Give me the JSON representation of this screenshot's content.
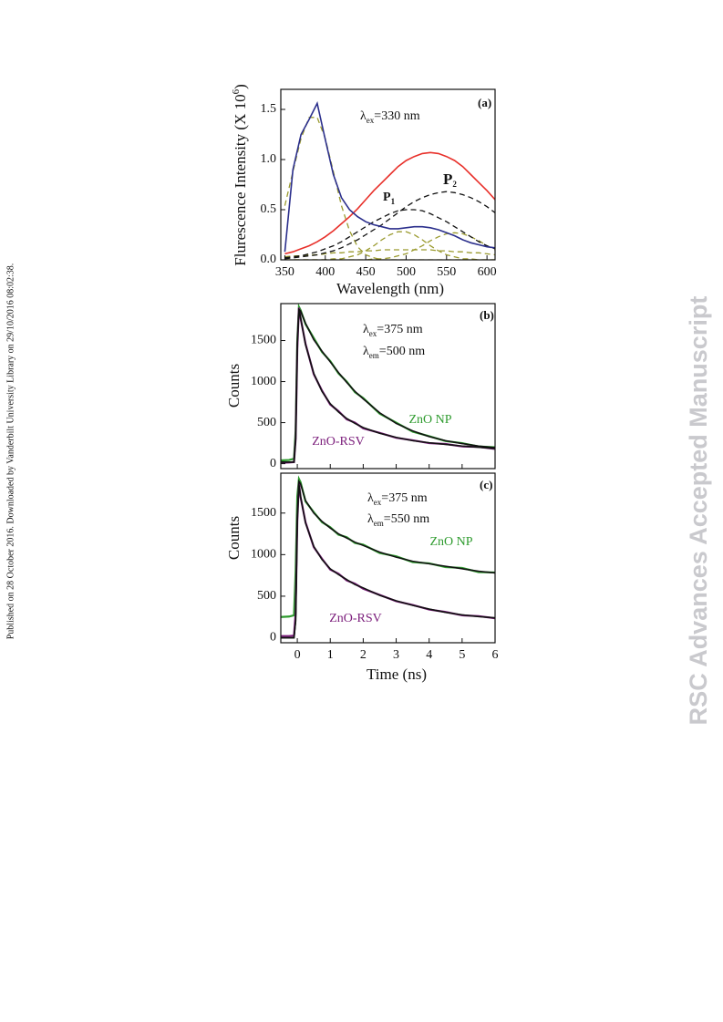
{
  "margin_note": "Published on 28 October 2016. Downloaded by Vanderbilt University Library on 29/10/2016 08:02:38.",
  "watermark": "RSC Advances Accepted Manuscript",
  "chart_data": [
    {
      "type": "line",
      "xlabel": "Wavelength (nm)",
      "ylabel": {
        "text": "Flurescence Intensity (X 10",
        "sup": "6",
        "after": ")"
      },
      "annotations": [
        {
          "text": "(a)"
        },
        {
          "text": "λ",
          "sub": "ex",
          "after": "=330 nm"
        },
        {
          "text": "P",
          "sub": "1"
        },
        {
          "text": "P",
          "sub": "2"
        }
      ],
      "xlim": [
        345,
        610
      ],
      "ylim": [
        0,
        1.7
      ],
      "xticks": [
        350,
        400,
        450,
        500,
        550,
        600
      ],
      "yticks": [
        {
          "value": 0,
          "label": "0.0"
        },
        0.5,
        {
          "value": 1,
          "label": "1.0"
        },
        1.5
      ],
      "xtick_labels": true,
      "x": [
        350,
        360,
        370,
        380,
        390,
        400,
        410,
        420,
        430,
        440,
        450,
        460,
        470,
        480,
        490,
        500,
        510,
        520,
        530,
        540,
        550,
        560,
        570,
        580,
        590,
        600,
        610
      ],
      "series": [
        {
          "color": "#9a9a2e",
          "dash": true,
          "values": [
            0.54,
            0.88,
            1.21,
            1.42,
            1.42,
            1.21,
            0.88,
            0.54,
            0.29,
            0.13,
            0.05,
            0.02,
            0,
            0,
            0,
            0,
            0,
            0,
            0,
            0,
            0,
            0,
            0,
            0,
            0,
            0,
            0
          ]
        },
        {
          "color": "#9a9a2e",
          "dash": true,
          "values": [
            0,
            0,
            0,
            0,
            0,
            0,
            0.01,
            0.01,
            0.03,
            0.05,
            0.09,
            0.14,
            0.2,
            0.25,
            0.28,
            0.28,
            0.25,
            0.2,
            0.14,
            0.09,
            0.05,
            0.03,
            0.01,
            0.01,
            0,
            0,
            0
          ]
        },
        {
          "color": "#9a9a2e",
          "dash": true,
          "values": [
            0,
            0,
            0,
            0,
            0,
            0,
            0,
            0,
            0,
            0,
            0,
            0.01,
            0.01,
            0.02,
            0.04,
            0.06,
            0.1,
            0.14,
            0.19,
            0.23,
            0.26,
            0.27,
            0.26,
            0.23,
            0.19,
            0.14,
            0.1
          ]
        },
        {
          "color": "#9a9a2e",
          "dash": true,
          "values": [
            0.03,
            0.04,
            0.04,
            0.05,
            0.05,
            0.06,
            0.07,
            0.07,
            0.08,
            0.08,
            0.09,
            0.09,
            0.1,
            0.1,
            0.1,
            0.1,
            0.1,
            0.1,
            0.1,
            0.09,
            0.09,
            0.08,
            0.08,
            0.07,
            0.07,
            0.06,
            0.05
          ]
        },
        {
          "color": "#111111",
          "dash": true,
          "values": [
            0.02,
            0.03,
            0.04,
            0.06,
            0.08,
            0.11,
            0.14,
            0.18,
            0.23,
            0.28,
            0.33,
            0.38,
            0.42,
            0.46,
            0.49,
            0.5,
            0.5,
            0.49,
            0.46,
            0.42,
            0.38,
            0.33,
            0.28,
            0.23,
            0.18,
            0.14,
            0.11
          ]
        },
        {
          "color": "#111111",
          "dash": true,
          "values": [
            0.01,
            0.02,
            0.03,
            0.04,
            0.05,
            0.07,
            0.09,
            0.12,
            0.16,
            0.2,
            0.25,
            0.3,
            0.35,
            0.41,
            0.47,
            0.53,
            0.58,
            0.62,
            0.65,
            0.67,
            0.68,
            0.67,
            0.65,
            0.62,
            0.58,
            0.53,
            0.47
          ]
        },
        {
          "color": "#e8302a",
          "dash": false,
          "values": [
            0.06,
            0.08,
            0.11,
            0.14,
            0.18,
            0.23,
            0.29,
            0.36,
            0.43,
            0.51,
            0.6,
            0.69,
            0.77,
            0.85,
            0.93,
            0.99,
            1.03,
            1.06,
            1.07,
            1.06,
            1.03,
            0.99,
            0.93,
            0.85,
            0.77,
            0.69,
            0.6
          ]
        },
        {
          "color": "#2b2f8c",
          "dash": false,
          "values": [
            0.08,
            0.9,
            1.25,
            1.4,
            1.56,
            1.2,
            0.85,
            0.62,
            0.5,
            0.43,
            0.38,
            0.35,
            0.33,
            0.31,
            0.31,
            0.32,
            0.33,
            0.33,
            0.32,
            0.3,
            0.27,
            0.24,
            0.2,
            0.17,
            0.15,
            0.13,
            0.12
          ]
        }
      ]
    },
    {
      "type": "line",
      "ylabel": {
        "text": "Counts"
      },
      "annotations": [
        {
          "text": "(b)"
        },
        {
          "text": "λ",
          "sub": "ex",
          "after": "=375 nm"
        },
        {
          "text": "λ",
          "sub": "em",
          "after": "=500 nm"
        }
      ],
      "xlim": [
        -0.5,
        6
      ],
      "ylim": [
        -60,
        1950
      ],
      "xticks": [
        0,
        1,
        2,
        3,
        4,
        5,
        6
      ],
      "yticks": [
        0,
        500,
        1000,
        1500
      ],
      "xtick_labels": false,
      "x": [
        -0.5,
        -0.25,
        -0.1,
        -0.05,
        0,
        0.05,
        0.1,
        0.25,
        0.5,
        0.75,
        1,
        1.25,
        1.5,
        1.75,
        2,
        2.5,
        3,
        3.5,
        4,
        4.5,
        5,
        5.5,
        6
      ],
      "series": [
        {
          "name": "ZnO NP",
          "color": "#2e9b2e",
          "dash": false,
          "values": [
            40,
            45,
            60,
            400,
            1500,
            1910,
            1870,
            1700,
            1530,
            1360,
            1250,
            1100,
            1000,
            870,
            800,
            610,
            500,
            390,
            335,
            275,
            250,
            210,
            200
          ]
        },
        {
          "name": "ZnO-RSV",
          "color": "#7b1d7b",
          "dash": false,
          "values": [
            10,
            15,
            20,
            300,
            1400,
            1900,
            1770,
            1460,
            1090,
            890,
            720,
            640,
            540,
            500,
            430,
            375,
            315,
            285,
            250,
            240,
            210,
            205,
            180
          ]
        },
        {
          "color": "#111111",
          "dash": false,
          "values": [
            20,
            20,
            20,
            300,
            1450,
            1880,
            1860,
            1710,
            1510,
            1370,
            1240,
            1110,
            990,
            880,
            790,
            620,
            490,
            400,
            330,
            280,
            245,
            215,
            195
          ]
        },
        {
          "color": "#111111",
          "dash": false,
          "values": [
            20,
            20,
            20,
            300,
            1450,
            1880,
            1780,
            1450,
            1100,
            880,
            730,
            630,
            550,
            490,
            440,
            370,
            320,
            280,
            255,
            235,
            215,
            200,
            185
          ]
        }
      ]
    },
    {
      "type": "line",
      "xlabel": "Time (ns)",
      "ylabel": {
        "text": "Counts"
      },
      "annotations": [
        {
          "text": "(c)"
        },
        {
          "text": "λ",
          "sub": "ex",
          "after": "=375 nm"
        },
        {
          "text": "λ",
          "sub": "em",
          "after": "=550 nm"
        }
      ],
      "xlim": [
        -0.5,
        6
      ],
      "ylim": [
        -60,
        1980
      ],
      "xticks": [
        0,
        1,
        2,
        3,
        4,
        5,
        6
      ],
      "yticks": [
        0,
        500,
        1000,
        1500
      ],
      "xtick_labels": true,
      "x": [
        -0.5,
        -0.25,
        -0.1,
        -0.05,
        0,
        0.05,
        0.1,
        0.25,
        0.5,
        0.75,
        1,
        1.25,
        1.5,
        1.75,
        2,
        2.5,
        3,
        3.5,
        4,
        4.5,
        5,
        5.5,
        6
      ],
      "series": [
        {
          "name": "ZnO NP",
          "color": "#2e9b2e",
          "dash": false,
          "values": [
            250,
            255,
            270,
            800,
            1700,
            1910,
            1870,
            1640,
            1510,
            1390,
            1330,
            1240,
            1210,
            1140,
            1120,
            1020,
            980,
            910,
            895,
            850,
            840,
            790,
            785
          ]
        },
        {
          "name": "ZnO-RSV",
          "color": "#7b1d7b",
          "dash": false,
          "values": [
            20,
            20,
            25,
            300,
            1400,
            1860,
            1690,
            1390,
            1090,
            950,
            820,
            770,
            690,
            650,
            590,
            515,
            440,
            395,
            340,
            310,
            270,
            260,
            235
          ]
        },
        {
          "color": "#111111",
          "dash": false,
          "values": [
            0,
            0,
            0,
            200,
            1450,
            1880,
            1850,
            1650,
            1500,
            1400,
            1320,
            1250,
            1200,
            1150,
            1110,
            1030,
            970,
            920,
            890,
            860,
            830,
            800,
            780
          ]
        },
        {
          "color": "#111111",
          "dash": false,
          "values": [
            0,
            0,
            0,
            200,
            1400,
            1840,
            1700,
            1380,
            1100,
            940,
            830,
            760,
            700,
            640,
            600,
            510,
            445,
            390,
            345,
            305,
            275,
            255,
            240
          ]
        }
      ]
    }
  ]
}
